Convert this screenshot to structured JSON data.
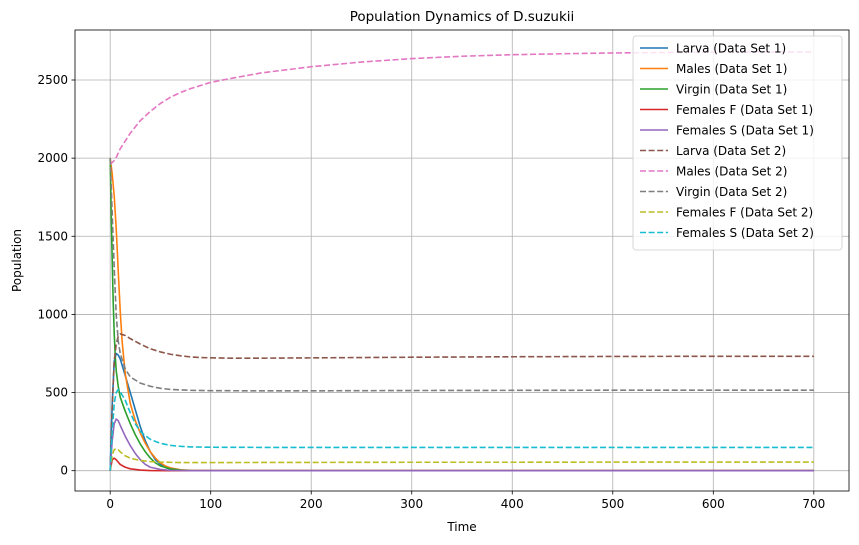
{
  "chart_data": {
    "type": "line",
    "title": "Population Dynamics of D.suzukii",
    "xlabel": "Time",
    "ylabel": "Population",
    "xlim": [
      -35,
      735
    ],
    "ylim": [
      -130,
      2820
    ],
    "xticks": [
      0,
      100,
      200,
      300,
      400,
      500,
      600,
      700
    ],
    "yticks": [
      0,
      500,
      1000,
      1500,
      2000,
      2500
    ],
    "grid": true,
    "legend_position": "top-right",
    "series": [
      {
        "name": "Larva (Data Set 1)",
        "color": "#1f77b4",
        "style": "solid",
        "points": [
          [
            0,
            0
          ],
          [
            2,
            420
          ],
          [
            4,
            700
          ],
          [
            6,
            750
          ],
          [
            8,
            740
          ],
          [
            10,
            715
          ],
          [
            14,
            630
          ],
          [
            20,
            500
          ],
          [
            25,
            390
          ],
          [
            30,
            280
          ],
          [
            35,
            190
          ],
          [
            40,
            120
          ],
          [
            45,
            70
          ],
          [
            50,
            40
          ],
          [
            55,
            20
          ],
          [
            60,
            10
          ],
          [
            70,
            3
          ],
          [
            80,
            1
          ],
          [
            100,
            0
          ],
          [
            700,
            0
          ]
        ]
      },
      {
        "name": "Males (Data Set 1)",
        "color": "#ff7f0e",
        "style": "solid",
        "points": [
          [
            0,
            2000
          ],
          [
            2,
            1900
          ],
          [
            4,
            1760
          ],
          [
            6,
            1550
          ],
          [
            8,
            1280
          ],
          [
            10,
            1020
          ],
          [
            12,
            820
          ],
          [
            15,
            620
          ],
          [
            20,
            430
          ],
          [
            25,
            320
          ],
          [
            30,
            240
          ],
          [
            35,
            175
          ],
          [
            40,
            120
          ],
          [
            45,
            80
          ],
          [
            50,
            50
          ],
          [
            55,
            30
          ],
          [
            60,
            18
          ],
          [
            70,
            6
          ],
          [
            80,
            2
          ],
          [
            100,
            0
          ],
          [
            700,
            0
          ]
        ]
      },
      {
        "name": "Virgin (Data Set 1)",
        "color": "#2ca02c",
        "style": "solid",
        "points": [
          [
            0,
            2000
          ],
          [
            1,
            1650
          ],
          [
            2,
            1350
          ],
          [
            3,
            1080
          ],
          [
            4,
            880
          ],
          [
            5,
            740
          ],
          [
            6,
            640
          ],
          [
            8,
            540
          ],
          [
            10,
            470
          ],
          [
            15,
            380
          ],
          [
            20,
            300
          ],
          [
            25,
            230
          ],
          [
            30,
            170
          ],
          [
            35,
            120
          ],
          [
            40,
            80
          ],
          [
            45,
            50
          ],
          [
            50,
            30
          ],
          [
            60,
            12
          ],
          [
            70,
            4
          ],
          [
            80,
            1
          ],
          [
            100,
            0
          ],
          [
            700,
            0
          ]
        ]
      },
      {
        "name": "Females F (Data Set 1)",
        "color": "#d62728",
        "style": "solid",
        "points": [
          [
            0,
            0
          ],
          [
            2,
            70
          ],
          [
            4,
            80
          ],
          [
            6,
            70
          ],
          [
            8,
            55
          ],
          [
            10,
            40
          ],
          [
            15,
            22
          ],
          [
            20,
            12
          ],
          [
            30,
            4
          ],
          [
            40,
            1
          ],
          [
            60,
            0
          ],
          [
            700,
            0
          ]
        ]
      },
      {
        "name": "Females S (Data Set 1)",
        "color": "#9467bd",
        "style": "solid",
        "points": [
          [
            0,
            0
          ],
          [
            2,
            190
          ],
          [
            4,
            300
          ],
          [
            6,
            330
          ],
          [
            8,
            320
          ],
          [
            10,
            290
          ],
          [
            15,
            220
          ],
          [
            20,
            160
          ],
          [
            25,
            110
          ],
          [
            30,
            70
          ],
          [
            35,
            40
          ],
          [
            40,
            22
          ],
          [
            50,
            8
          ],
          [
            60,
            2
          ],
          [
            80,
            0
          ],
          [
            700,
            0
          ]
        ]
      },
      {
        "name": "Larva (Data Set 2)",
        "color": "#8c564b",
        "style": "dashed",
        "points": [
          [
            0,
            0
          ],
          [
            2,
            400
          ],
          [
            4,
            700
          ],
          [
            6,
            810
          ],
          [
            8,
            860
          ],
          [
            10,
            875
          ],
          [
            15,
            865
          ],
          [
            20,
            845
          ],
          [
            30,
            810
          ],
          [
            40,
            780
          ],
          [
            50,
            760
          ],
          [
            60,
            745
          ],
          [
            70,
            735
          ],
          [
            80,
            728
          ],
          [
            90,
            724
          ],
          [
            100,
            722
          ],
          [
            120,
            720
          ],
          [
            150,
            720
          ],
          [
            200,
            722
          ],
          [
            300,
            726
          ],
          [
            400,
            729
          ],
          [
            500,
            731
          ],
          [
            600,
            732
          ],
          [
            700,
            732
          ]
        ]
      },
      {
        "name": "Males (Data Set 2)",
        "color": "#e377c2",
        "style": "dashed",
        "points": [
          [
            0,
            1960
          ],
          [
            5,
            1990
          ],
          [
            10,
            2060
          ],
          [
            20,
            2160
          ],
          [
            30,
            2240
          ],
          [
            40,
            2300
          ],
          [
            50,
            2350
          ],
          [
            60,
            2390
          ],
          [
            70,
            2420
          ],
          [
            80,
            2445
          ],
          [
            100,
            2485
          ],
          [
            120,
            2510
          ],
          [
            150,
            2545
          ],
          [
            200,
            2585
          ],
          [
            250,
            2615
          ],
          [
            300,
            2637
          ],
          [
            350,
            2652
          ],
          [
            400,
            2662
          ],
          [
            450,
            2668
          ],
          [
            500,
            2673
          ],
          [
            550,
            2676
          ],
          [
            600,
            2678
          ],
          [
            650,
            2679
          ],
          [
            700,
            2680
          ]
        ]
      },
      {
        "name": "Virgin (Data Set 2)",
        "color": "#7f7f7f",
        "style": "dashed",
        "points": [
          [
            0,
            2000
          ],
          [
            2,
            1650
          ],
          [
            4,
            1300
          ],
          [
            6,
            1000
          ],
          [
            8,
            830
          ],
          [
            10,
            750
          ],
          [
            15,
            650
          ],
          [
            20,
            600
          ],
          [
            30,
            560
          ],
          [
            40,
            540
          ],
          [
            50,
            527
          ],
          [
            60,
            520
          ],
          [
            80,
            514
          ],
          [
            100,
            512
          ],
          [
            150,
            511
          ],
          [
            200,
            511
          ],
          [
            300,
            513
          ],
          [
            400,
            514
          ],
          [
            500,
            515
          ],
          [
            600,
            515
          ],
          [
            700,
            515
          ]
        ]
      },
      {
        "name": "Females F (Data Set 2)",
        "color": "#bcbd22",
        "style": "dashed",
        "points": [
          [
            0,
            0
          ],
          [
            2,
            100
          ],
          [
            4,
            135
          ],
          [
            6,
            140
          ],
          [
            8,
            135
          ],
          [
            10,
            120
          ],
          [
            15,
            95
          ],
          [
            20,
            80
          ],
          [
            30,
            65
          ],
          [
            40,
            58
          ],
          [
            50,
            55
          ],
          [
            70,
            52
          ],
          [
            100,
            52
          ],
          [
            200,
            53
          ],
          [
            300,
            54
          ],
          [
            400,
            54
          ],
          [
            500,
            55
          ],
          [
            600,
            55
          ],
          [
            700,
            55
          ]
        ]
      },
      {
        "name": "Females S (Data Set 2)",
        "color": "#17becf",
        "style": "dashed",
        "points": [
          [
            0,
            0
          ],
          [
            2,
            250
          ],
          [
            4,
            430
          ],
          [
            6,
            500
          ],
          [
            8,
            520
          ],
          [
            10,
            505
          ],
          [
            15,
            450
          ],
          [
            20,
            370
          ],
          [
            25,
            300
          ],
          [
            30,
            250
          ],
          [
            40,
            200
          ],
          [
            50,
            175
          ],
          [
            60,
            162
          ],
          [
            70,
            156
          ],
          [
            80,
            152
          ],
          [
            100,
            150
          ],
          [
            150,
            149
          ],
          [
            200,
            149
          ],
          [
            300,
            149
          ],
          [
            400,
            149
          ],
          [
            500,
            149
          ],
          [
            600,
            149
          ],
          [
            700,
            149
          ]
        ]
      }
    ]
  }
}
